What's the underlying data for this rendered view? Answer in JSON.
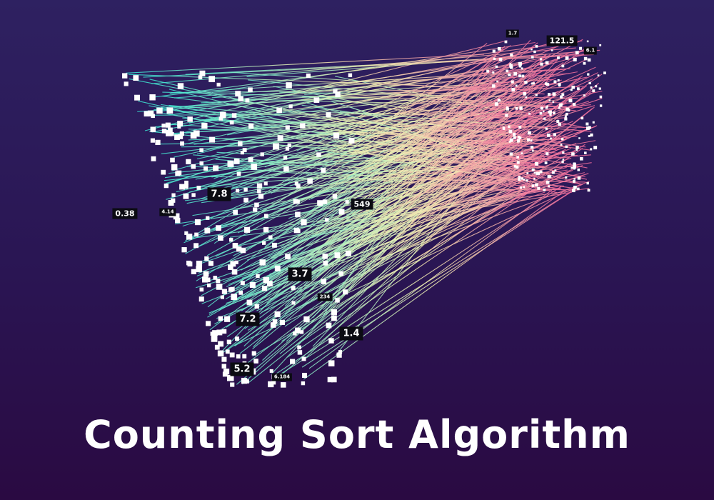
{
  "title": "Counting Sort Algorithm",
  "value_labels": [
    {
      "text": "1.7",
      "size": "s"
    },
    {
      "text": "121.5",
      "size": "m"
    },
    {
      "text": "6.1",
      "size": "s"
    },
    {
      "text": "7.8",
      "size": "l"
    },
    {
      "text": "549",
      "size": "m"
    },
    {
      "text": "0.38",
      "size": "m"
    },
    {
      "text": "4.14",
      "size": "s"
    },
    {
      "text": "3.7",
      "size": "l"
    },
    {
      "text": "234",
      "size": "s"
    },
    {
      "text": "7.2",
      "size": "l"
    },
    {
      "text": "1.4",
      "size": "l"
    },
    {
      "text": "5.2",
      "size": "l"
    },
    {
      "text": "6.184",
      "size": "s"
    }
  ],
  "colors": {
    "background_top": "#2e2161",
    "background_bottom": "#2a0a42",
    "line_start": "#2ee6d6",
    "line_mid": "#f3f1b3",
    "line_end": "#f26a9c",
    "node": "#ffffff",
    "label_bg": "#0b0b12"
  }
}
